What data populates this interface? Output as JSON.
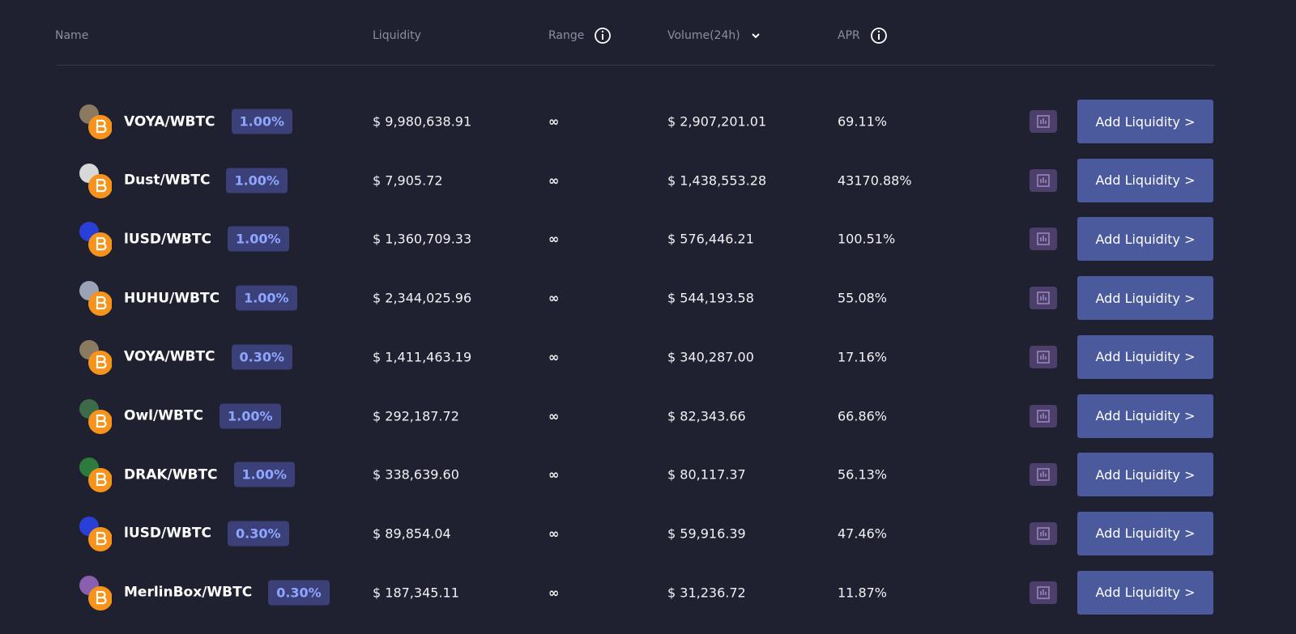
{
  "header": {
    "name": "Name",
    "liquidity": "Liquidity",
    "range": "Range",
    "volume": "Volume(24h)",
    "apr": "APR"
  },
  "rows": [
    {
      "name": "VOYA/WBTC",
      "fee": "1.00%",
      "liquidity": "$ 9,980,638.91",
      "range": "∞",
      "volume": "$ 2,907,201.01",
      "apr": "69.11%",
      "action": "Add Liquidity >"
    },
    {
      "name": "Dust/WBTC",
      "fee": "1.00%",
      "liquidity": "$ 7,905.72",
      "range": "∞",
      "volume": "$ 1,438,553.28",
      "apr": "43170.88%",
      "action": "Add Liquidity >"
    },
    {
      "name": "lUSD/WBTC",
      "fee": "1.00%",
      "liquidity": "$ 1,360,709.33",
      "range": "∞",
      "volume": "$ 576,446.21",
      "apr": "100.51%",
      "action": "Add Liquidity >"
    },
    {
      "name": "HUHU/WBTC",
      "fee": "1.00%",
      "liquidity": "$ 2,344,025.96",
      "range": "∞",
      "volume": "$ 544,193.58",
      "apr": "55.08%",
      "action": "Add Liquidity >"
    },
    {
      "name": "VOYA/WBTC",
      "fee": "0.30%",
      "liquidity": "$ 1,411,463.19",
      "range": "∞",
      "volume": "$ 340,287.00",
      "apr": "17.16%",
      "action": "Add Liquidity >"
    },
    {
      "name": "Owl/WBTC",
      "fee": "1.00%",
      "liquidity": "$ 292,187.72",
      "range": "∞",
      "volume": "$ 82,343.66",
      "apr": "66.86%",
      "action": "Add Liquidity >"
    },
    {
      "name": "DRAK/WBTC",
      "fee": "1.00%",
      "liquidity": "$ 338,639.60",
      "range": "∞",
      "volume": "$ 80,117.37",
      "apr": "56.13%",
      "action": "Add Liquidity >"
    },
    {
      "name": "lUSD/WBTC",
      "fee": "0.30%",
      "liquidity": "$ 89,854.04",
      "range": "∞",
      "volume": "$ 59,916.39",
      "apr": "47.46%",
      "action": "Add Liquidity >"
    },
    {
      "name": "MerlinBox/WBTC",
      "fee": "0.30%",
      "liquidity": "$ 187,345.11",
      "range": "∞",
      "volume": "$ 31,236.72",
      "apr": "11.87%",
      "action": "Add Liquidity >"
    }
  ]
}
